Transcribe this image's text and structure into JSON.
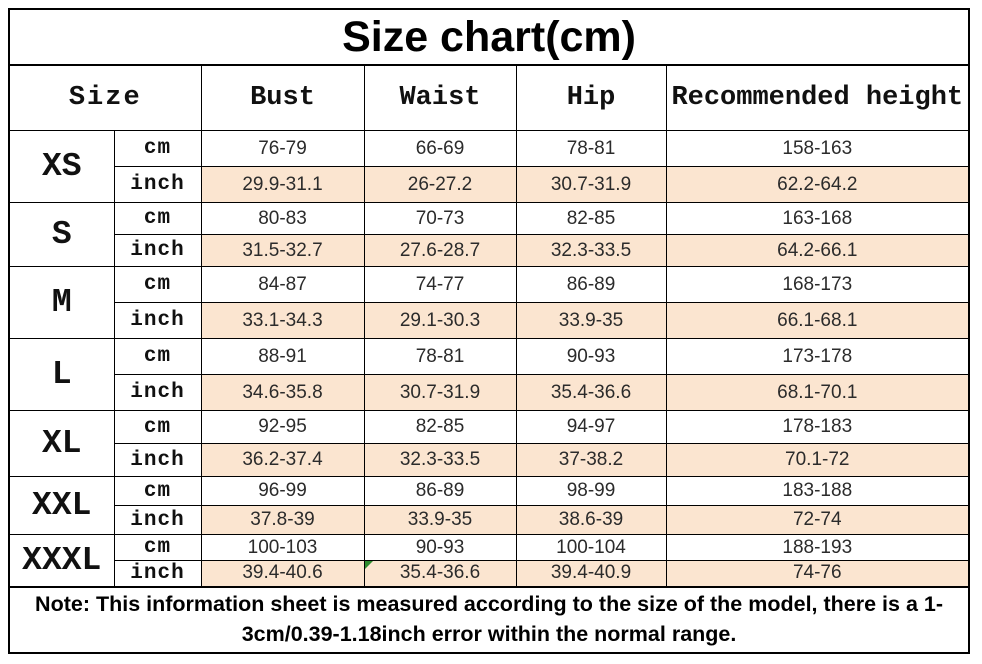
{
  "title": "Size chart(cm)",
  "columns": [
    "Size",
    "Bust",
    "Waist",
    "Hip",
    "Recommended height"
  ],
  "units": {
    "cm": "cm",
    "inch": "inch"
  },
  "sizes": [
    {
      "label": "XS",
      "cm": [
        "76-79",
        "66-69",
        "78-81",
        "158-163"
      ],
      "inch": [
        "29.9-31.1",
        "26-27.2",
        "30.7-31.9",
        "62.2-64.2"
      ]
    },
    {
      "label": "S",
      "cm": [
        "80-83",
        "70-73",
        "82-85",
        "163-168"
      ],
      "inch": [
        "31.5-32.7",
        "27.6-28.7",
        "32.3-33.5",
        "64.2-66.1"
      ]
    },
    {
      "label": "M",
      "cm": [
        "84-87",
        "74-77",
        "86-89",
        "168-173"
      ],
      "inch": [
        "33.1-34.3",
        "29.1-30.3",
        "33.9-35",
        "66.1-68.1"
      ]
    },
    {
      "label": "L",
      "cm": [
        "88-91",
        "78-81",
        "90-93",
        "173-178"
      ],
      "inch": [
        "34.6-35.8",
        "30.7-31.9",
        "35.4-36.6",
        "68.1-70.1"
      ]
    },
    {
      "label": "XL",
      "cm": [
        "92-95",
        "82-85",
        "94-97",
        "178-183"
      ],
      "inch": [
        "36.2-37.4",
        "32.3-33.5",
        "37-38.2",
        "70.1-72"
      ]
    },
    {
      "label": "XXL",
      "cm": [
        "96-99",
        "86-89",
        "98-99",
        "183-188"
      ],
      "inch": [
        "37.8-39",
        "33.9-35",
        "38.6-39",
        "72-74"
      ]
    },
    {
      "label": "XXXL",
      "cm": [
        "100-103",
        "90-93",
        "100-104",
        "188-193"
      ],
      "inch": [
        "39.4-40.6",
        "35.4-36.6",
        "39.4-40.9",
        "74-76"
      ]
    }
  ],
  "note": "Note: This information sheet is measured according to the size of the model, there is a 1-3cm/0.39-1.18inch error within the normal range.",
  "marker": {
    "cell": "XXXL-inch-waist",
    "color": "#2e8b2e"
  },
  "colors": {
    "inch_row_bg": "#fbe5d0",
    "border": "#000000"
  }
}
